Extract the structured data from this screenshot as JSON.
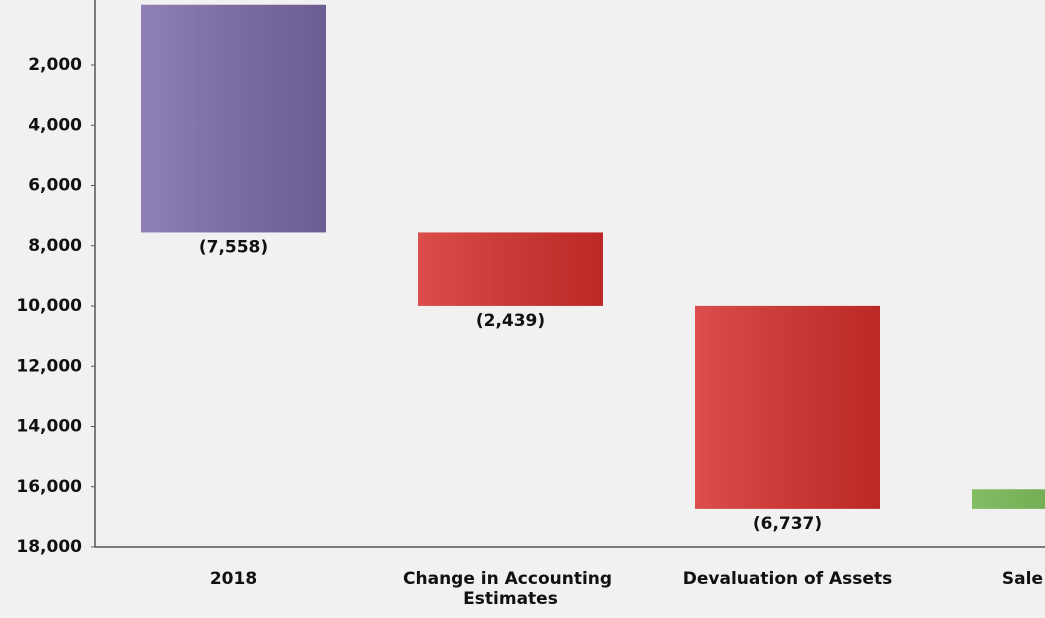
{
  "chart_data": {
    "type": "waterfall",
    "categories": [
      "2018",
      "Change in Accounting Estimates",
      "Devaluation of Assets",
      "Sale"
    ],
    "values": [
      -7558,
      -2439,
      -6737,
      650
    ],
    "value_labels": [
      "(7,558)",
      "(2,439)",
      "(6,737)",
      null
    ],
    "colors": [
      "#7b6aa8",
      "#d52f2c",
      "#d52f2c",
      "#6db24a"
    ],
    "ylim": [
      0,
      -18000
    ],
    "yticks": [
      {
        "value": -2000,
        "label": "2,000"
      },
      {
        "value": -4000,
        "label": "4,000"
      },
      {
        "value": -6000,
        "label": "6,000"
      },
      {
        "value": -8000,
        "label": "8,000"
      },
      {
        "value": -10000,
        "label": "10,000"
      },
      {
        "value": -12000,
        "label": "12,000"
      },
      {
        "value": -14000,
        "label": "14,000"
      },
      {
        "value": -16000,
        "label": "16,000"
      },
      {
        "value": -18000,
        "label": "18,000"
      }
    ]
  }
}
